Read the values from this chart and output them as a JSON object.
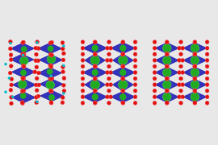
{
  "bg_color": "#e8e8e8",
  "panel_bg": "#e8e8e8",
  "colors": {
    "green": "#22aa22",
    "green_edge": "#44cc44",
    "red": "#dd1111",
    "red_edge": "#ff4444",
    "blue": "#3333bb",
    "blue_edge": "#1111aa",
    "cyan": "#00bbcc"
  },
  "figsize": [
    2.7,
    1.8
  ],
  "dpi": 100
}
